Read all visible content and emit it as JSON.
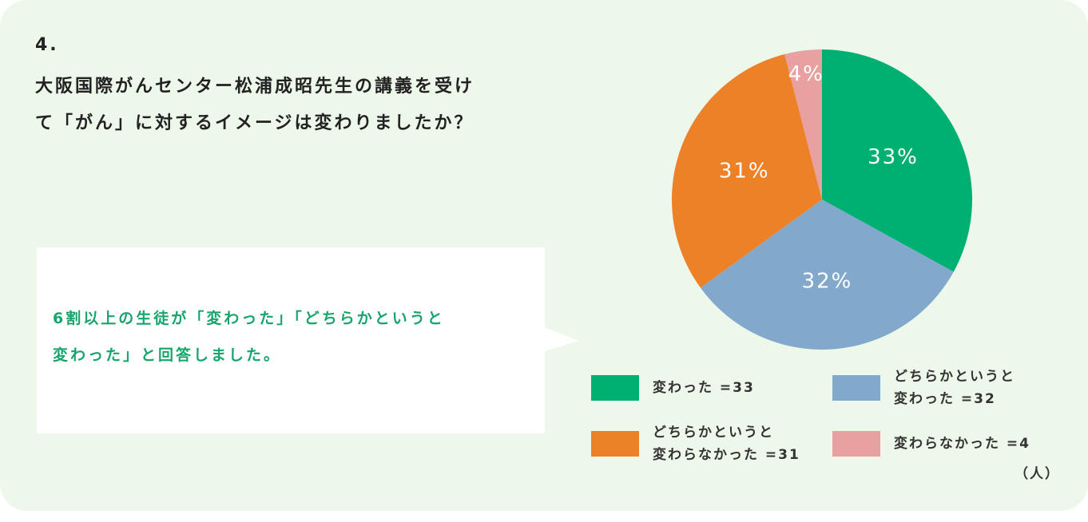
{
  "question": {
    "number": "4.",
    "lines": [
      "大阪国際がんセンター松浦成昭先生の講義を受け",
      "て「がん」に対するイメージは変わりましたか？"
    ]
  },
  "callout": {
    "lines": [
      "6割以上の生徒が「変わった」「どちらかというと",
      "変わった」と回答しました。"
    ]
  },
  "chart_data": {
    "type": "pie",
    "categories": [
      "変わった =33",
      "どちらかというと\n変わった =32",
      "どちらかというと\n変わらなかった =31",
      "変わらなかった =4"
    ],
    "values": [
      33,
      32,
      31,
      4
    ],
    "value_labels": [
      "33%",
      "32%",
      "31%",
      "4%"
    ],
    "colors": [
      "#00b073",
      "#82a8cc",
      "#ed8128",
      "#e8a0a0"
    ],
    "unit": "（人）"
  }
}
